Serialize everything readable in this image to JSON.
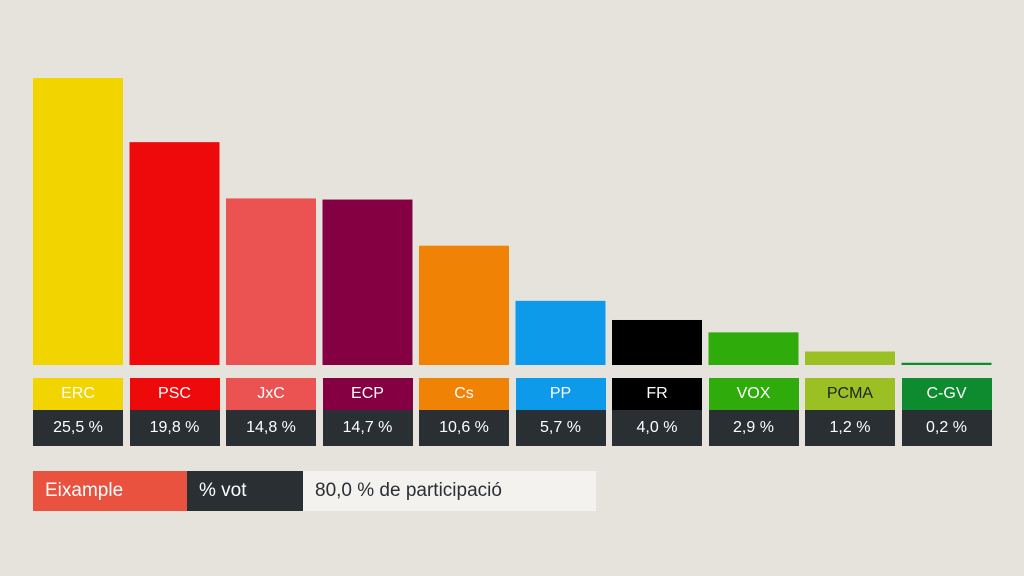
{
  "chart_data": {
    "type": "bar",
    "categories": [
      "ERC",
      "PSC",
      "JxC",
      "ECP",
      "Cs",
      "PP",
      "FR",
      "VOX",
      "PCMA",
      "C-GV"
    ],
    "values": [
      25.5,
      19.8,
      14.8,
      14.7,
      10.6,
      5.7,
      4.0,
      2.9,
      1.2,
      0.2
    ],
    "value_labels": [
      "25,5 %",
      "19,8 %",
      "14,8 %",
      "14,7 %",
      "10,6 %",
      "5,7 %",
      "4,0 %",
      "2,9 %",
      "1,2 %",
      "0,2 %"
    ],
    "colors": [
      "#f2d400",
      "#ee0a0a",
      "#ea5352",
      "#850043",
      "#f08205",
      "#0e9aea",
      "#000000",
      "#2fac0b",
      "#9bc024",
      "#0e8b2e"
    ],
    "ylim": [
      0,
      25.5
    ],
    "grid": false,
    "legend": false
  },
  "footer": {
    "district": "Eixample",
    "metric": "% vot",
    "turnout": "80,0 % de participació"
  }
}
